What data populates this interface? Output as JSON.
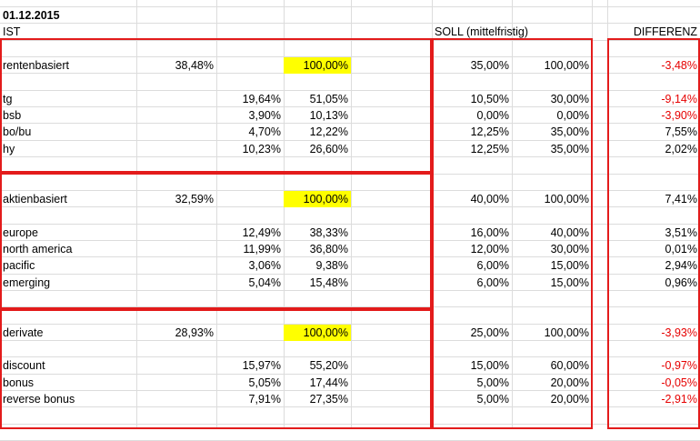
{
  "date": "01.12.2015",
  "headers": {
    "ist": "IST",
    "soll": "SOLL (mittelfristig)",
    "differenz": "DIFFERENZ"
  },
  "colors": {
    "highlight": "#ffff00",
    "negative": "#e60000",
    "box": "#e31b1b",
    "grid": "#dcdcdc"
  },
  "groups": [
    {
      "name": "rentenbasiert",
      "share": "38,48%",
      "total": "100,00%",
      "soll": "35,00%",
      "soll_total": "100,00%",
      "diff": "-3,48%",
      "diff_negative": true,
      "items": [
        {
          "name": "tg",
          "a": "19,64%",
          "b": "51,05%",
          "s1": "10,50%",
          "s2": "30,00%",
          "diff": "-9,14%",
          "diff_negative": true
        },
        {
          "name": "bsb",
          "a": "3,90%",
          "b": "10,13%",
          "s1": "0,00%",
          "s2": "0,00%",
          "diff": "-3,90%",
          "diff_negative": true
        },
        {
          "name": "bo/bu",
          "a": "4,70%",
          "b": "12,22%",
          "s1": "12,25%",
          "s2": "35,00%",
          "diff": "7,55%",
          "diff_negative": false
        },
        {
          "name": "hy",
          "a": "10,23%",
          "b": "26,60%",
          "s1": "12,25%",
          "s2": "35,00%",
          "diff": "2,02%",
          "diff_negative": false
        }
      ]
    },
    {
      "name": "aktienbasiert",
      "share": "32,59%",
      "total": "100,00%",
      "soll": "40,00%",
      "soll_total": "100,00%",
      "diff": "7,41%",
      "diff_negative": false,
      "items": [
        {
          "name": "europe",
          "a": "12,49%",
          "b": "38,33%",
          "s1": "16,00%",
          "s2": "40,00%",
          "diff": "3,51%",
          "diff_negative": false
        },
        {
          "name": "north america",
          "a": "11,99%",
          "b": "36,80%",
          "s1": "12,00%",
          "s2": "30,00%",
          "diff": "0,01%",
          "diff_negative": false
        },
        {
          "name": "pacific",
          "a": "3,06%",
          "b": "9,38%",
          "s1": "6,00%",
          "s2": "15,00%",
          "diff": "2,94%",
          "diff_negative": false
        },
        {
          "name": "emerging",
          "a": "5,04%",
          "b": "15,48%",
          "s1": "6,00%",
          "s2": "15,00%",
          "diff": "0,96%",
          "diff_negative": false
        }
      ]
    },
    {
      "name": "derivate",
      "share": "28,93%",
      "total": "100,00%",
      "soll": "25,00%",
      "soll_total": "100,00%",
      "diff": "-3,93%",
      "diff_negative": true,
      "items": [
        {
          "name": "discount",
          "a": "15,97%",
          "b": "55,20%",
          "s1": "15,00%",
          "s2": "60,00%",
          "diff": "-0,97%",
          "diff_negative": true
        },
        {
          "name": "bonus",
          "a": "5,05%",
          "b": "17,44%",
          "s1": "5,00%",
          "s2": "20,00%",
          "diff": "-0,05%",
          "diff_negative": true
        },
        {
          "name": "reverse bonus",
          "a": "7,91%",
          "b": "27,35%",
          "s1": "5,00%",
          "s2": "20,00%",
          "diff": "-2,91%",
          "diff_negative": true
        }
      ]
    }
  ]
}
